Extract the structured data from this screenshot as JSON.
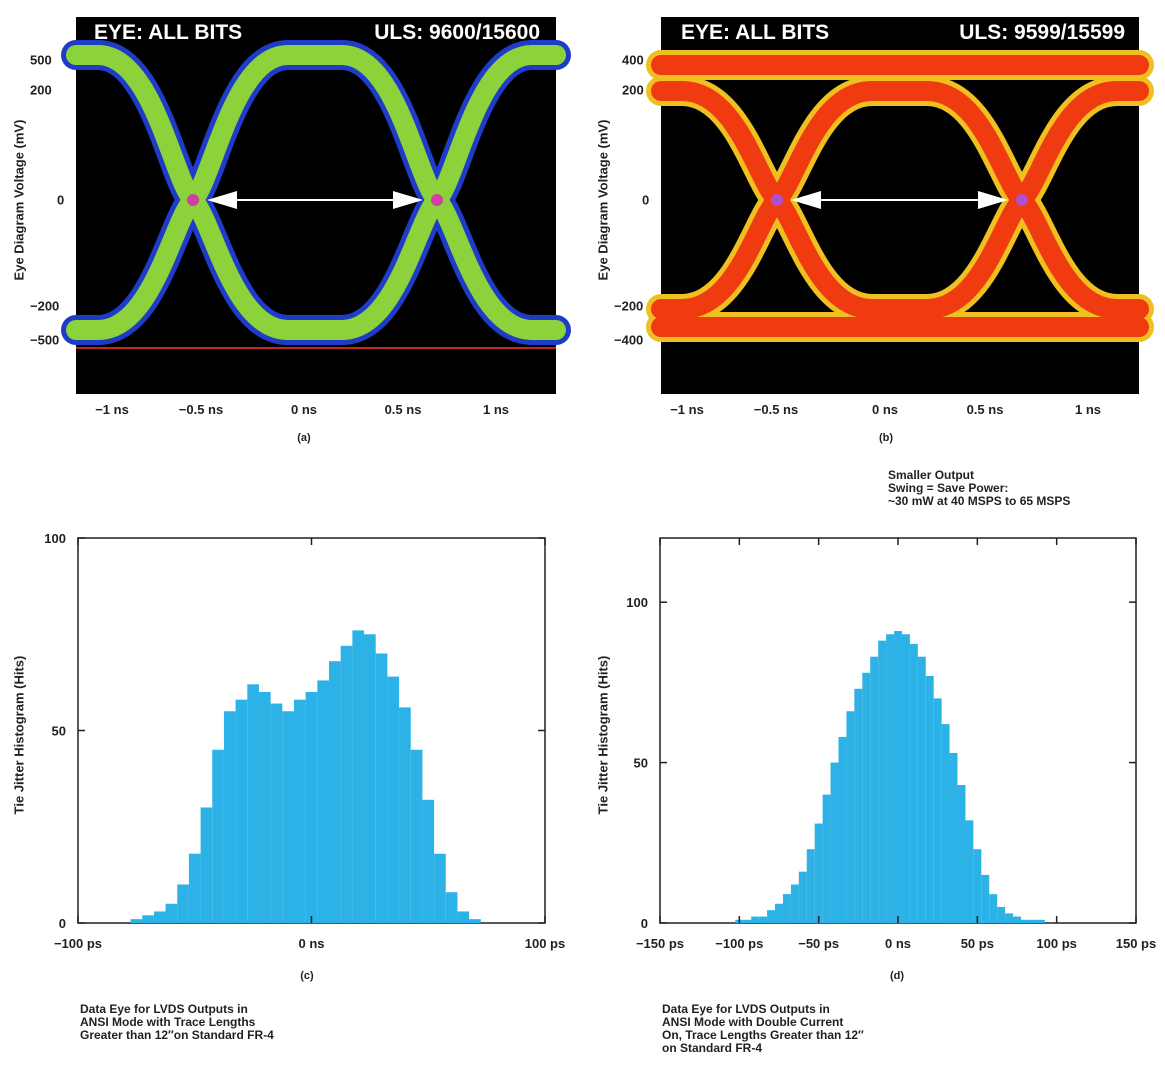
{
  "chart_data": [
    {
      "type": "eye diagram",
      "panel": "(a)",
      "header_left": "EYE: ALL BITS",
      "header_right": "ULS: 9600/15600",
      "ylabel": "Eye Diagram Voltage (mV)",
      "y_ticks": [
        "500",
        "200",
        "0",
        "−200",
        "−500"
      ],
      "x_ticks": [
        "−1 ns",
        "−0.5 ns",
        "0 ns",
        "0.5 ns",
        "1 ns"
      ],
      "palette": "green",
      "colors": {
        "trace": "#8cd23a",
        "edge": "#1e3cc8",
        "cross": "#d040a0"
      }
    },
    {
      "type": "eye diagram",
      "panel": "(b)",
      "header_left": "EYE: ALL BITS",
      "header_right": "ULS: 9599/15599",
      "ylabel": "Eye Diagram Voltage (mV)",
      "y_ticks": [
        "400",
        "200",
        "0",
        "−200",
        "−400"
      ],
      "x_ticks": [
        "−1 ns",
        "−0.5 ns",
        "0 ns",
        "0.5 ns",
        "1 ns"
      ],
      "palette": "red",
      "colors": {
        "trace": "#f03a10",
        "edge": "#f0c020",
        "cross": "#b050d0"
      }
    },
    {
      "type": "bar",
      "panel": "(c)",
      "ylabel": "Tie Jitter Histogram (Hits)",
      "x_tick_labels": [
        "−100 ps",
        "0 ns",
        "100 ps"
      ],
      "x_tick_values": [
        -100,
        0,
        100
      ],
      "xlim": [
        -100,
        100
      ],
      "y_ticks": [
        0,
        50,
        100
      ],
      "ylim": [
        0,
        100
      ],
      "color": "#2cb2e6",
      "x": [
        -75,
        -70,
        -65,
        -60,
        -55,
        -50,
        -45,
        -40,
        -35,
        -30,
        -25,
        -20,
        -15,
        -10,
        -5,
        0,
        5,
        10,
        15,
        20,
        25,
        30,
        35,
        40,
        45,
        50,
        55,
        60,
        65,
        70
      ],
      "values": [
        1,
        2,
        3,
        5,
        10,
        18,
        30,
        45,
        55,
        58,
        62,
        60,
        57,
        55,
        58,
        60,
        63,
        68,
        72,
        76,
        75,
        70,
        64,
        56,
        45,
        32,
        18,
        8,
        3,
        1
      ]
    },
    {
      "type": "bar",
      "panel": "(d)",
      "ylabel": "Tie Jitter Histogram (Hits)",
      "x_tick_labels": [
        "−150 ps",
        "−100 ps",
        "−50 ps",
        "0 ns",
        "50 ps",
        "100 ps",
        "150 ps"
      ],
      "x_tick_values": [
        -150,
        -100,
        -50,
        0,
        50,
        100,
        150
      ],
      "xlim": [
        -150,
        150
      ],
      "y_ticks": [
        0,
        50,
        100
      ],
      "ylim": [
        0,
        120
      ],
      "color": "#2cb2e6",
      "x": [
        -100,
        -95,
        -90,
        -85,
        -80,
        -75,
        -70,
        -65,
        -60,
        -55,
        -50,
        -45,
        -40,
        -35,
        -30,
        -25,
        -20,
        -15,
        -10,
        -5,
        0,
        5,
        10,
        15,
        20,
        25,
        30,
        35,
        40,
        45,
        50,
        55,
        60,
        65,
        70,
        75,
        80,
        85,
        90
      ],
      "values": [
        1,
        1,
        2,
        2,
        4,
        6,
        9,
        12,
        16,
        23,
        31,
        40,
        50,
        58,
        66,
        73,
        78,
        83,
        88,
        90,
        91,
        90,
        87,
        83,
        77,
        70,
        62,
        53,
        43,
        32,
        23,
        15,
        9,
        5,
        3,
        2,
        1,
        1,
        1
      ]
    }
  ],
  "captions": {
    "a": "(a)",
    "b": "(b)",
    "c": "(c)",
    "d": "(d)",
    "swing_note": "Smaller Output\nSwing = Save Power:\n~30 mW at 40 MSPS to 65 MSPS",
    "note_c": "Data Eye for LVDS Outputs in\nANSI Mode with Trace Lengths\nGreater than 12″on Standard FR-4",
    "note_d": "Data Eye for LVDS Outputs in\nANSI Mode with Double Current\nOn, Trace Lengths Greater than 12″\non Standard FR-4"
  }
}
